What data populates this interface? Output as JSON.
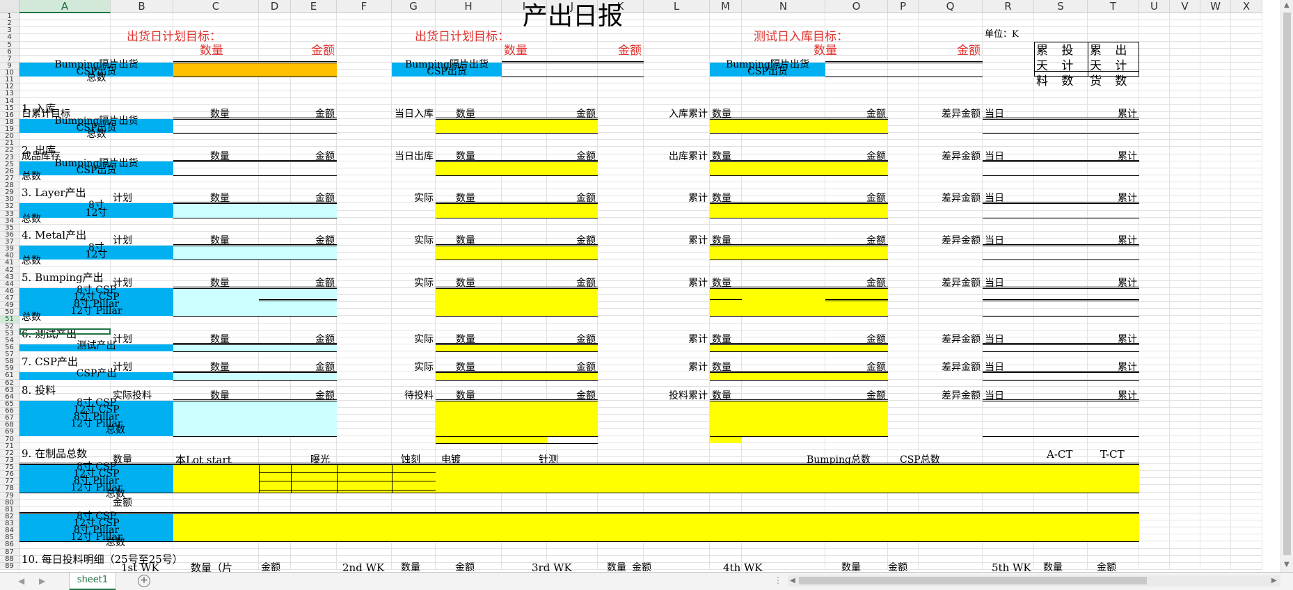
{
  "sheet": {
    "active_tab": "sheet1",
    "columns": [
      "A",
      "B",
      "C",
      "D",
      "E",
      "F",
      "G",
      "H",
      "I",
      "J",
      "K",
      "L",
      "M",
      "N",
      "O",
      "P",
      "Q",
      "R",
      "S",
      "T",
      "U",
      "V",
      "W",
      "X"
    ],
    "selected_column": "A",
    "row_labels": [
      "1",
      "2",
      "3",
      "4",
      "5",
      "6",
      "7",
      "9",
      "10",
      "11",
      "12",
      "13",
      "14",
      "15",
      "16",
      "18",
      "19",
      "20",
      "21",
      "22",
      "23",
      "25",
      "26",
      "27",
      "28",
      "29",
      "30",
      "32",
      "33",
      "34",
      "35",
      "36",
      "37",
      "39",
      "40",
      "41",
      "42",
      "43",
      "44",
      "46",
      "47",
      "49",
      "50",
      "51",
      "52",
      "53",
      "54",
      "56",
      "57",
      "58",
      "59",
      "61",
      "62",
      "63",
      "64",
      "65",
      "66",
      "67",
      "68",
      "69",
      "70",
      "71",
      "72",
      "73",
      "75",
      "76",
      "77",
      "78",
      "79",
      "80",
      "81",
      "82",
      "83",
      "84",
      "85",
      "86",
      "87",
      "88",
      "89"
    ],
    "selected_row": "51"
  },
  "report": {
    "title": "产出日报",
    "unit_label": "单位：K",
    "top_box": {
      "c1": "累 投 天 计 料 数",
      "c2": "累 出 天 计 货 数"
    },
    "plan1_title": "出货日计划目标：",
    "plan2_title": "出货日计划目标：",
    "plan3_title": "测试日入库目标：",
    "qty": "数量",
    "amt": "金额",
    "bumping_label": "Bumping隔片出货",
    "csp_label": "CSP出货",
    "total": "总数",
    "today": "当日",
    "cumulative": "累计",
    "diff_amt": "差异金额",
    "plan": "计划",
    "actual": "实际",
    "s1": {
      "title": "1. 入库",
      "daily_target": "日累计目标",
      "today_in": "当日入库",
      "cum_in": "入库累计"
    },
    "s2": {
      "title": "2. 出库",
      "stock": "成品库存",
      "today_out": "当日出库",
      "cum_out": "出库累计"
    },
    "s3": {
      "title": "3. Layer产出"
    },
    "s4": {
      "title": "4. Metal产出"
    },
    "s5": {
      "title": "5.  Bumping产出"
    },
    "s6": {
      "title": "6. 测试产出",
      "row": "测试产出"
    },
    "s7": {
      "title": "7. CSP产出",
      "row": "CSP产出"
    },
    "s8": {
      "title": "8. 投料",
      "actual_feed": "实际投料",
      "pending": "待投料",
      "cum_feed": "投料累计"
    },
    "s9": {
      "title": "9. 在制品总数",
      "lot_start": "本Lot start",
      "exposure": "曝光",
      "etch": "蚀刻",
      "plate": "电镀",
      "probe": "针测",
      "bumping_total": "Bumping总数",
      "csp_total": "CSP总数",
      "act": "A-CT",
      "tct": "T-CT"
    },
    "s10": {
      "title": "10.  每日投料明细（25号至25号）",
      "wk1": "1st WK",
      "wk2": "2nd WK",
      "wk3": "3rd WK",
      "wk4": "4th WK",
      "wk5": "5th WK",
      "qty_pcs": "数量（片"
    },
    "inch8": "8寸",
    "inch12": "12寸",
    "p8csp": "8寸 CSP",
    "p12csp": "12寸 CSP",
    "p8pillar": "8寸 Pillar",
    "p12pillar": "12寸 Pillar"
  },
  "colors": {
    "cyan": "#00b0f0",
    "yellow": "#ffff00",
    "orange": "#ffc000",
    "light_cyan": "#ccffff",
    "red": "#e0322e"
  }
}
